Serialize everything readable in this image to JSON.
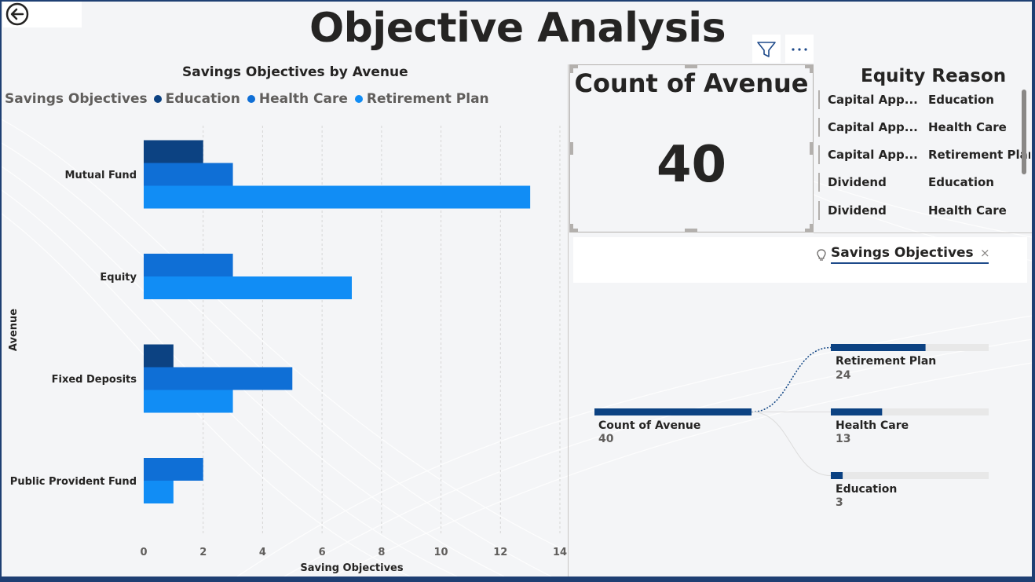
{
  "page": {
    "title": "Objective Analysis"
  },
  "bar_chart": {
    "title": "Savings Objectives by Avenue",
    "legend_title": "Savings Objectives",
    "legend": [
      {
        "name": "Education",
        "color": "#0c4282"
      },
      {
        "name": "Health Care",
        "color": "#0f6fd6"
      },
      {
        "name": "Retirement Plan",
        "color": "#118df5"
      }
    ]
  },
  "chart_data": {
    "type": "bar",
    "orientation": "horizontal",
    "title": "Savings Objectives by Avenue",
    "xlabel": "Saving Objectives",
    "ylabel": "Avenue",
    "categories": [
      "Mutual Fund",
      "Equity",
      "Fixed Deposits",
      "Public Provident Fund"
    ],
    "series": [
      {
        "name": "Education",
        "values": [
          2,
          0,
          1,
          0
        ],
        "color": "#0c4282"
      },
      {
        "name": "Health Care",
        "values": [
          3,
          3,
          5,
          2
        ],
        "color": "#0f6fd6"
      },
      {
        "name": "Retirement Plan",
        "values": [
          13,
          7,
          3,
          1
        ],
        "color": "#118df5"
      }
    ],
    "xlim": [
      0,
      14
    ],
    "xticks": [
      "0",
      "2",
      "4",
      "6",
      "8",
      "10",
      "12",
      "14"
    ],
    "grid": "vertical dashed",
    "legend_position": "top-left"
  },
  "card": {
    "title": "Count of Avenue",
    "value": "40"
  },
  "table": {
    "title": "Equity Reason",
    "rows": [
      {
        "reason": "Capital App...",
        "objective": "Education"
      },
      {
        "reason": "Capital App...",
        "objective": "Health Care"
      },
      {
        "reason": "Capital App...",
        "objective": "Retirement Plan"
      },
      {
        "reason": "Dividend",
        "objective": "Education"
      },
      {
        "reason": "Dividend",
        "objective": "Health Care"
      }
    ]
  },
  "visual_header": {
    "filter_icon": "filter-icon",
    "more_icon": "more-options-icon",
    "more_label": "···"
  },
  "decomposition_tree": {
    "field_chip": "Savings Objectives",
    "close_glyph": "×",
    "root": {
      "label": "Count of Avenue",
      "value": 40
    },
    "children": [
      {
        "label": "Retirement Plan",
        "value": 24
      },
      {
        "label": "Health Care",
        "value": 13
      },
      {
        "label": "Education",
        "value": 3
      }
    ],
    "colors": {
      "bar": "#0c4282",
      "track": "#e8e8e8",
      "link": "#0c4282"
    }
  }
}
